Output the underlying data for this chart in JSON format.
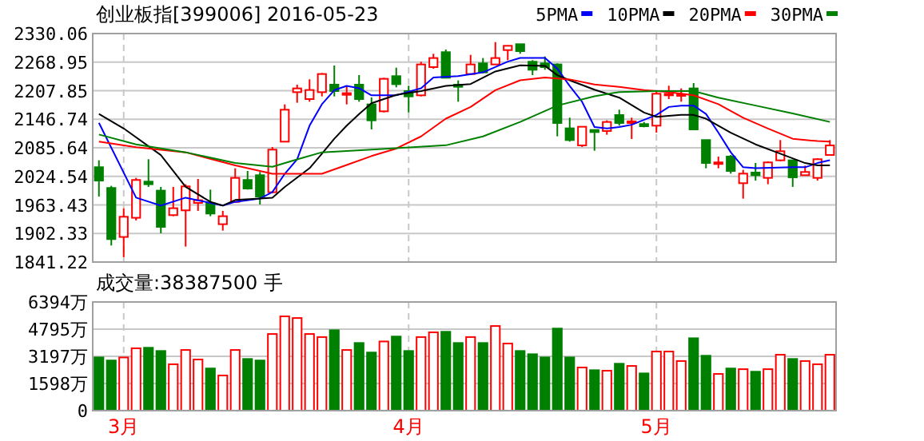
{
  "chart_data": [
    {
      "type": "candlestick",
      "title": "创业板指[399006] 2016-05-23",
      "categories": [
        null,
        null,
        null,
        null,
        null,
        null,
        null,
        null,
        null,
        null,
        null,
        null,
        null,
        null,
        null,
        null,
        null,
        null,
        null,
        null,
        null,
        null,
        null,
        null,
        null,
        null,
        null,
        null,
        null,
        null,
        null,
        null,
        null,
        null,
        null,
        null,
        null,
        null,
        null,
        null,
        null,
        null,
        null,
        null,
        null,
        null,
        null,
        null,
        null,
        null,
        null,
        null,
        null,
        null,
        null,
        null,
        null,
        null,
        null,
        null
      ],
      "ohlc": [
        [
          2044.1,
          2058.9,
          1981.4,
          2015.6
        ],
        [
          1999.7,
          2004.2,
          1876.6,
          1890.3
        ],
        [
          1894.9,
          1956.4,
          1851.6,
          1938.1
        ],
        [
          1935.9,
          2021.3,
          1930.2,
          2016.8
        ],
        [
          2013.3,
          2061.2,
          2002.0,
          2007.7
        ],
        [
          1994.0,
          2002.0,
          1902.8,
          1916.5
        ],
        [
          1941.6,
          2002.0,
          1939.3,
          1956.4
        ],
        [
          1951.8,
          2007.7,
          1874.3,
          2003.1
        ],
        [
          1967.8,
          2019.0,
          1950.7,
          1973.5
        ],
        [
          1967.8,
          1996.2,
          1939.3,
          1945.0
        ],
        [
          1922.2,
          1950.7,
          1908.5,
          1939.3
        ],
        [
          1970.0,
          2041.8,
          1967.8,
          2021.3
        ],
        [
          2016.8,
          2036.1,
          1996.2,
          1998.5
        ],
        [
          2027.0,
          2033.9,
          1964.4,
          1981.4
        ],
        [
          1990.6,
          2087.4,
          1988.3,
          2081.7
        ],
        [
          2098.8,
          2178.5,
          2098.8,
          2167.1
        ],
        [
          2204.7,
          2220.7,
          2182.0,
          2212.7
        ],
        [
          2189.9,
          2232.1,
          2184.2,
          2209.3
        ],
        [
          2204.7,
          2245.7,
          2195.6,
          2243.5
        ],
        [
          2220.7,
          2261.7,
          2195.6,
          2207.0
        ],
        [
          2199.0,
          2218.4,
          2178.5,
          2202.5
        ],
        [
          2220.7,
          2241.2,
          2184.2,
          2189.9
        ],
        [
          2178.5,
          2193.3,
          2125.0,
          2144.4
        ],
        [
          2163.7,
          2235.5,
          2161.4,
          2233.2
        ],
        [
          2238.9,
          2257.1,
          2215.0,
          2221.8
        ],
        [
          2207.0,
          2218.4,
          2161.4,
          2195.6
        ],
        [
          2197.9,
          2269.7,
          2195.6,
          2264.0
        ],
        [
          2258.3,
          2286.8,
          2254.9,
          2277.7
        ],
        [
          2290.2,
          2295.9,
          2235.5,
          2235.5
        ],
        [
          2220.7,
          2229.8,
          2184.2,
          2216.1
        ],
        [
          2243.5,
          2284.5,
          2241.2,
          2264.0
        ],
        [
          2266.3,
          2277.7,
          2246.9,
          2246.9
        ],
        [
          2264.0,
          2311.8,
          2264.0,
          2277.7
        ],
        [
          2294.7,
          2303.9,
          2273.1,
          2303.9
        ],
        [
          2307.3,
          2307.3,
          2286.8,
          2292.5
        ],
        [
          2269.7,
          2273.1,
          2241.2,
          2252.6
        ],
        [
          2266.3,
          2281.1,
          2252.6,
          2258.3
        ],
        [
          2264.0,
          2266.3,
          2110.2,
          2138.7
        ],
        [
          2127.3,
          2150.1,
          2098.8,
          2102.2
        ],
        [
          2090.8,
          2130.7,
          2087.4,
          2130.7
        ],
        [
          2123.8,
          2125.0,
          2079.4,
          2119.3
        ],
        [
          2121.6,
          2144.4,
          2113.6,
          2140.9
        ],
        [
          2155.7,
          2167.1,
          2133.0,
          2138.7
        ],
        [
          2139.8,
          2150.1,
          2104.5,
          2142.1
        ],
        [
          2136.4,
          2140.9,
          2129.5,
          2131.8
        ],
        [
          2133.0,
          2207.0,
          2118.2,
          2201.3
        ],
        [
          2199.0,
          2218.4,
          2189.9,
          2201.3
        ],
        [
          2196.8,
          2212.7,
          2184.2,
          2200.2
        ],
        [
          2212.7,
          2224.1,
          2125.0,
          2125.0
        ],
        [
          2102.2,
          2102.2,
          2041.8,
          2053.2
        ],
        [
          2052.1,
          2066.9,
          2041.8,
          2054.4
        ],
        [
          2066.9,
          2070.3,
          2030.4,
          2036.1
        ],
        [
          2009.9,
          2038.4,
          1976.9,
          2030.4
        ],
        [
          2032.7,
          2053.2,
          2015.6,
          2027.0
        ],
        [
          2021.3,
          2056.6,
          2007.7,
          2054.4
        ],
        [
          2058.9,
          2102.2,
          2056.6,
          2078.3
        ],
        [
          2058.9,
          2058.9,
          2002.0,
          2022.5
        ],
        [
          2027.0,
          2047.5,
          2027.0,
          2033.9
        ],
        [
          2021.3,
          2063.5,
          2015.6,
          2061.2
        ],
        [
          2070.3,
          2102.2,
          2070.3,
          2090.8
        ]
      ],
      "colors": [
        "#008000",
        "#008000",
        "#ff0000",
        "#ff0000",
        "#008000",
        "#008000",
        "#ff0000",
        "#ff0000",
        "#ff0000",
        "#008000",
        "#ff0000",
        "#ff0000",
        "#008000",
        "#008000",
        "#ff0000",
        "#ff0000",
        "#ff0000",
        "#ff0000",
        "#ff0000",
        "#008000",
        "#ff0000",
        "#008000",
        "#008000",
        "#ff0000",
        "#008000",
        "#008000",
        "#ff0000",
        "#ff0000",
        "#008000",
        "#008000",
        "#ff0000",
        "#008000",
        "#ff0000",
        "#ff0000",
        "#008000",
        "#008000",
        "#008000",
        "#008000",
        "#008000",
        "#ff0000",
        "#008000",
        "#ff0000",
        "#008000",
        "#ff0000",
        "#008000",
        "#ff0000",
        "#ff0000",
        "#ff0000",
        "#008000",
        "#008000",
        "#ff0000",
        "#008000",
        "#ff0000",
        "#008000",
        "#ff0000",
        "#ff0000",
        "#008000",
        "#ff0000",
        "#ff0000",
        "#ff0000"
      ],
      "series": [
        {
          "name": "5PMA",
          "type": "line",
          "color": "#0000ff",
          "values": [
            2139,
            null,
            null,
            1979,
            null,
            1962,
            null,
            1979,
            null,
            null,
            1962,
            1970,
            null,
            1977,
            1991,
            2030,
            2061,
            2133,
            2179,
            2209,
            2218,
            2213,
            2198,
            null,
            2198,
            null,
            2213,
            2236,
            null,
            2239,
            null,
            2247,
            null,
            2270,
            2278,
            null,
            2278,
            2255,
            2218,
            2184,
            2130,
            2127,
            2130,
            2135,
            null,
            2156,
            2173,
            2176,
            2176,
            2158,
            2118,
            2076,
            2044,
            2042,
            null,
            null,
            2044,
            2044,
            2053,
            2059
          ]
        },
        {
          "name": "10PMA",
          "type": "line",
          "color": "#000000",
          "values": [
            2158,
            null,
            2127,
            null,
            null,
            2070,
            null,
            2002,
            null,
            1970,
            1962,
            1974,
            null,
            1977,
            1979,
            2002,
            null,
            2042,
            2073,
            2105,
            2133,
            2158,
            2181,
            null,
            2199,
            null,
            2207,
            null,
            2218,
            null,
            2222,
            null,
            2249,
            null,
            2262,
            null,
            2261,
            2241,
            2230,
            null,
            2210,
            null,
            2193,
            null,
            2161,
            2152,
            null,
            2156,
            2156,
            2148,
            null,
            2118,
            null,
            2093,
            null,
            2073,
            null,
            2053,
            2048,
            2048
          ]
        },
        {
          "name": "20PMA",
          "type": "line",
          "color": "#ff0000",
          "values": [
            2099,
            null,
            null,
            2087,
            null,
            null,
            null,
            2076,
            null,
            null,
            null,
            2048,
            null,
            2036,
            2030,
            null,
            null,
            null,
            2030,
            null,
            2049,
            null,
            2068,
            null,
            2084,
            null,
            2110,
            null,
            2148,
            null,
            2173,
            null,
            2209,
            null,
            2230,
            null,
            2236,
            null,
            2232,
            null,
            2221,
            null,
            2216,
            null,
            2209,
            null,
            2205,
            null,
            2198,
            null,
            2179,
            null,
            2150,
            null,
            2127,
            null,
            2105,
            null,
            2100,
            2099
          ]
        },
        {
          "name": "30PMA",
          "type": "line",
          "color": "#008000",
          "values": [
            2114,
            null,
            null,
            2093,
            null,
            null,
            null,
            2076,
            null,
            null,
            null,
            2053,
            null,
            null,
            2045,
            null,
            2061,
            null,
            2076,
            null,
            2079,
            null,
            null,
            null,
            2085,
            null,
            null,
            null,
            2091,
            null,
            null,
            2110,
            null,
            null,
            2141,
            null,
            null,
            2176,
            null,
            null,
            2196,
            null,
            2205,
            null,
            null,
            2207,
            null,
            null,
            2207,
            null,
            2193,
            null,
            null,
            2176,
            null,
            null,
            2159,
            null,
            null,
            2141
          ]
        }
      ],
      "ylim": [
        1841.22,
        2330.06
      ],
      "yticks": [
        {
          "value": 2330.06,
          "label": "2330.06"
        },
        {
          "value": 2268.95,
          "label": "2268.95"
        },
        {
          "value": 2207.85,
          "label": "2207.85"
        },
        {
          "value": 2146.74,
          "label": "2146.74"
        },
        {
          "value": 2085.64,
          "label": "2085.64"
        },
        {
          "value": 2024.54,
          "label": "2024.54"
        },
        {
          "value": 1963.43,
          "label": "1963.43"
        },
        {
          "value": 1902.33,
          "label": "1902.33"
        },
        {
          "value": 1841.22,
          "label": "1841.22"
        }
      ],
      "grid": true,
      "legend": "top right",
      "tick_labels": "y"
    },
    {
      "type": "bar",
      "title": "成交量:38387500 手",
      "categories": [
        null,
        null,
        "3月",
        null,
        null,
        null,
        null,
        null,
        null,
        null,
        null,
        null,
        null,
        null,
        null,
        null,
        null,
        null,
        null,
        null,
        null,
        null,
        null,
        null,
        null,
        "4月",
        null,
        null,
        null,
        null,
        null,
        null,
        null,
        null,
        null,
        null,
        null,
        null,
        null,
        null,
        null,
        null,
        null,
        null,
        null,
        "5月",
        null,
        null,
        null,
        null,
        null,
        null,
        null,
        null,
        null,
        null,
        null,
        null,
        null,
        null
      ],
      "values": [
        3130,
        2950,
        3130,
        3670,
        3700,
        3510,
        2730,
        3570,
        3010,
        2480,
        2070,
        3570,
        3040,
        2950,
        4510,
        5550,
        5450,
        4510,
        4330,
        4730,
        3570,
        3980,
        3420,
        4070,
        4360,
        3510,
        4330,
        4610,
        4640,
        3980,
        4330,
        3980,
        4980,
        3950,
        3510,
        3320,
        3130,
        4830,
        3130,
        2540,
        2380,
        2350,
        2760,
        2630,
        2190,
        3480,
        3480,
        2920,
        4260,
        3230,
        2160,
        2480,
        2440,
        2290,
        2440,
        3290,
        3040,
        2920,
        2730,
        3290
      ],
      "colors": [
        "#008000",
        "#008000",
        "#ff0000",
        "#ff0000",
        "#008000",
        "#008000",
        "#ff0000",
        "#ff0000",
        "#ff0000",
        "#008000",
        "#ff0000",
        "#ff0000",
        "#008000",
        "#008000",
        "#ff0000",
        "#ff0000",
        "#ff0000",
        "#ff0000",
        "#ff0000",
        "#008000",
        "#ff0000",
        "#008000",
        "#008000",
        "#ff0000",
        "#008000",
        "#008000",
        "#ff0000",
        "#ff0000",
        "#008000",
        "#008000",
        "#ff0000",
        "#008000",
        "#ff0000",
        "#ff0000",
        "#008000",
        "#008000",
        "#008000",
        "#008000",
        "#008000",
        "#ff0000",
        "#008000",
        "#ff0000",
        "#008000",
        "#ff0000",
        "#008000",
        "#ff0000",
        "#ff0000",
        "#ff0000",
        "#008000",
        "#008000",
        "#ff0000",
        "#008000",
        "#ff0000",
        "#008000",
        "#ff0000",
        "#ff0000",
        "#008000",
        "#ff0000",
        "#ff0000",
        "#ff0000"
      ],
      "ylim": [
        0,
        6394
      ],
      "yticks": [
        0,
        {
          "value": 1598,
          "label": "1598万"
        },
        {
          "value": 3197,
          "label": "3197万"
        },
        {
          "value": 4795,
          "label": "4795万"
        },
        {
          "value": 6394,
          "label": "6394万"
        }
      ],
      "grid": true
    }
  ]
}
